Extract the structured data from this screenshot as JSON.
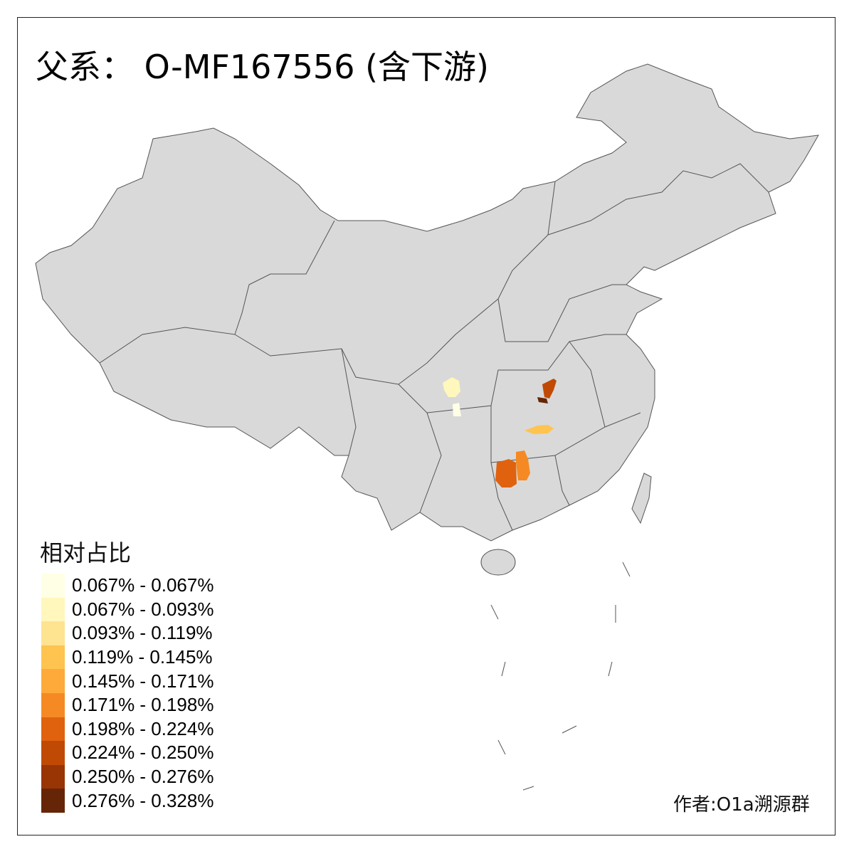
{
  "title": "父系： O-MF167556 (含下游)",
  "map": {
    "base_fill": "#D9D9D9",
    "border_color": "#555555",
    "highlighted_regions": [
      {
        "color_class": 1,
        "fill": "#FFF7BC"
      },
      {
        "color_class": 0,
        "fill": "#FFFFE5"
      },
      {
        "color_class": 7,
        "fill": "#C04A04"
      },
      {
        "color_class": 9,
        "fill": "#662506"
      },
      {
        "color_class": 3,
        "fill": "#FEC44F"
      },
      {
        "color_class": 6,
        "fill": "#E0620F"
      },
      {
        "color_class": 5,
        "fill": "#F58A24"
      }
    ]
  },
  "legend": {
    "title": "相对占比",
    "items": [
      {
        "label": "0.067% - 0.067%",
        "color": "#FFFFE5"
      },
      {
        "label": "0.067% - 0.093%",
        "color": "#FFF7BC"
      },
      {
        "label": "0.093% - 0.119%",
        "color": "#FEE391"
      },
      {
        "label": "0.119% - 0.145%",
        "color": "#FEC44F"
      },
      {
        "label": "0.145% - 0.171%",
        "color": "#FEAA3A"
      },
      {
        "label": "0.171% - 0.198%",
        "color": "#F58A24"
      },
      {
        "label": "0.198% - 0.224%",
        "color": "#E0620F"
      },
      {
        "label": "0.224% - 0.250%",
        "color": "#C04A04"
      },
      {
        "label": "0.250% - 0.276%",
        "color": "#993404"
      },
      {
        "label": "0.276% - 0.328%",
        "color": "#662506"
      }
    ]
  },
  "author": "作者:O1a溯源群"
}
